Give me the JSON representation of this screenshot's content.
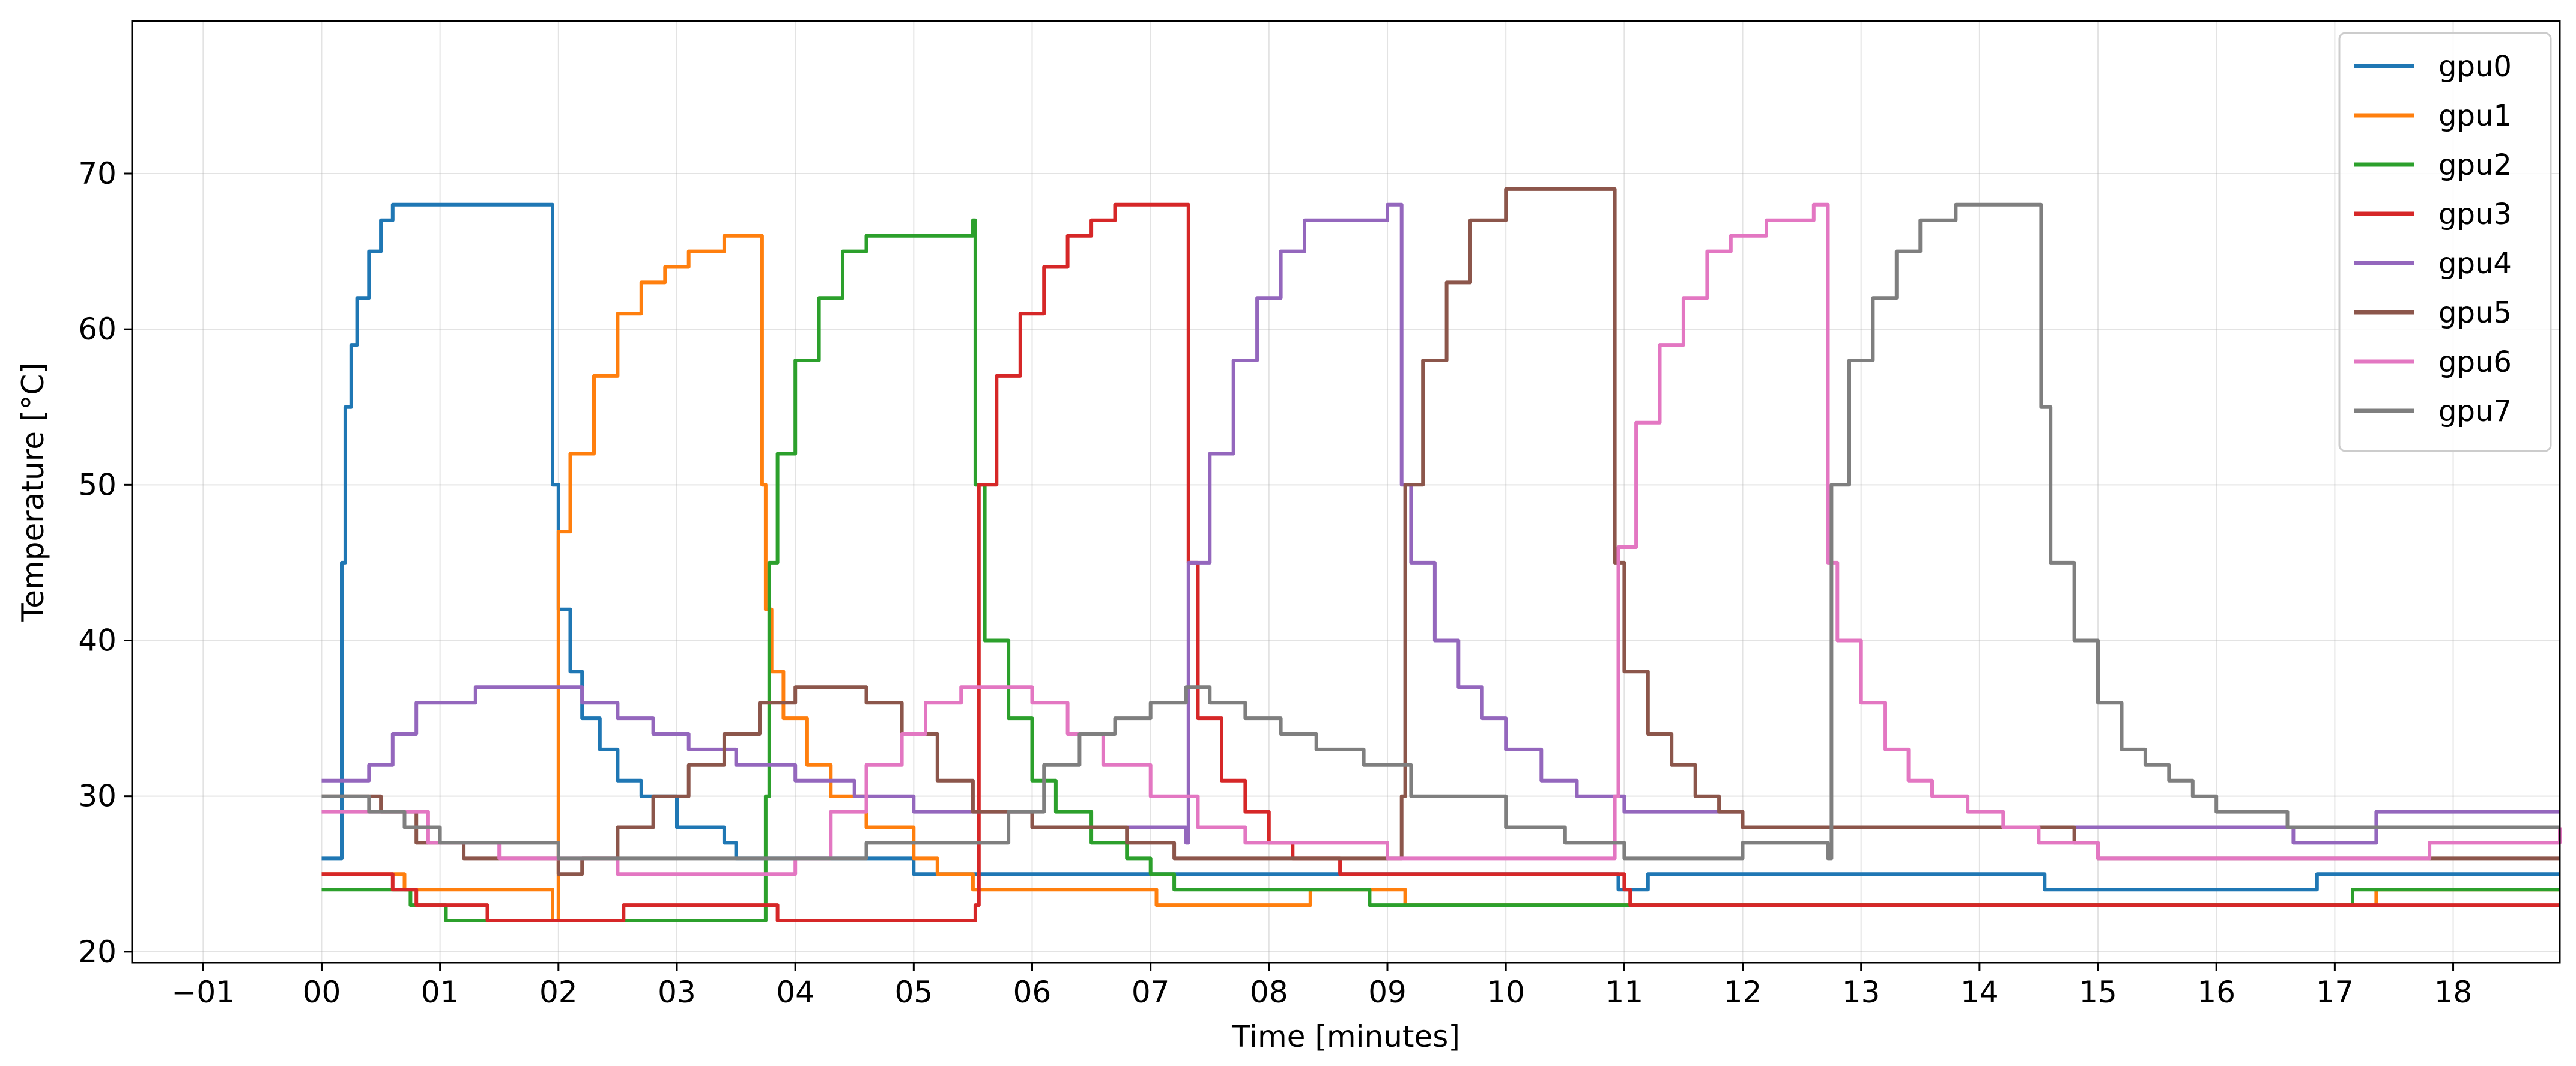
{
  "chart_data": {
    "type": "line",
    "title": "",
    "xlabel": "Time [minutes]",
    "ylabel": "Temperature [°C]",
    "xlim": [
      -1.6,
      18.9
    ],
    "ylim": [
      19.3,
      79.8
    ],
    "x_ticks": [
      -1,
      0,
      1,
      2,
      3,
      4,
      5,
      6,
      7,
      8,
      9,
      10,
      11,
      12,
      13,
      14,
      15,
      16,
      17,
      18
    ],
    "x_tick_labels": [
      "-01",
      "00",
      "01",
      "02",
      "03",
      "04",
      "05",
      "06",
      "07",
      "08",
      "09",
      "10",
      "11",
      "12",
      "13",
      "14",
      "15",
      "16",
      "17",
      "18"
    ],
    "y_ticks": [
      20,
      30,
      40,
      50,
      60,
      70
    ],
    "y_tick_labels": [
      "20",
      "30",
      "40",
      "50",
      "60",
      "70"
    ],
    "grid": true,
    "legend": "top-right",
    "series": [
      {
        "name": "gpu0",
        "color": "#1f77b4",
        "x": [
          0,
          0.15,
          0.17,
          0.2,
          0.25,
          0.3,
          0.4,
          0.5,
          0.6,
          0.7,
          0.75,
          1.9,
          1.95,
          2.0,
          2.1,
          2.2,
          2.35,
          2.5,
          2.7,
          3.0,
          3.4,
          3.5,
          4.8,
          5.0,
          6.0,
          10.9,
          10.95,
          11.1,
          11.2,
          14.5,
          14.55,
          16.8,
          16.85,
          18.9
        ],
        "y": [
          26,
          26,
          45,
          55,
          59,
          62,
          65,
          67,
          68,
          68,
          68,
          68,
          50,
          42,
          38,
          35,
          33,
          31,
          30,
          28,
          27,
          26,
          26,
          25,
          25,
          25,
          24,
          24,
          25,
          25,
          24,
          24,
          25,
          25
        ]
      },
      {
        "name": "gpu1",
        "color": "#ff7f0e",
        "x": [
          0,
          0.6,
          0.7,
          1.9,
          1.95,
          2.0,
          2.1,
          2.3,
          2.5,
          2.7,
          2.9,
          3.1,
          3.4,
          3.7,
          3.72,
          3.75,
          3.8,
          3.9,
          4.1,
          4.3,
          4.6,
          5.0,
          5.2,
          5.5,
          7.0,
          7.05,
          8.3,
          8.35,
          9.1,
          9.15,
          17.3,
          17.35,
          18.9
        ],
        "y": [
          25,
          25,
          24,
          24,
          22,
          47,
          52,
          57,
          61,
          63,
          64,
          65,
          66,
          66,
          50,
          42,
          38,
          35,
          32,
          30,
          28,
          26,
          25,
          24,
          24,
          23,
          23,
          24,
          24,
          23,
          23,
          24,
          24
        ]
      },
      {
        "name": "gpu2",
        "color": "#2ca02c",
        "x": [
          0,
          0.7,
          0.75,
          1.0,
          1.05,
          3.7,
          3.75,
          3.78,
          3.85,
          4.0,
          4.2,
          4.4,
          4.6,
          4.8,
          5.0,
          5.4,
          5.5,
          5.52,
          5.6,
          5.8,
          6.0,
          6.2,
          6.5,
          6.8,
          7.0,
          7.2,
          8.8,
          8.85,
          17.1,
          17.15,
          18.9
        ],
        "y": [
          24,
          24,
          23,
          23,
          22,
          22,
          30,
          45,
          52,
          58,
          62,
          65,
          66,
          66,
          66,
          66,
          67,
          50,
          40,
          35,
          31,
          29,
          27,
          26,
          25,
          24,
          24,
          23,
          23,
          24,
          24
        ]
      },
      {
        "name": "gpu3",
        "color": "#d62728",
        "x": [
          0,
          0.4,
          0.6,
          0.8,
          1.4,
          2.5,
          2.55,
          3.8,
          3.85,
          5.5,
          5.52,
          5.55,
          5.7,
          5.9,
          6.1,
          6.3,
          6.5,
          6.7,
          7.0,
          7.3,
          7.32,
          7.4,
          7.6,
          7.8,
          8.0,
          8.2,
          8.4,
          8.6,
          9.0,
          11.0,
          11.05,
          18.9
        ],
        "y": [
          25,
          25,
          24,
          23,
          22,
          22,
          23,
          23,
          22,
          22,
          23,
          50,
          57,
          61,
          64,
          66,
          67,
          68,
          68,
          68,
          45,
          35,
          31,
          29,
          27,
          26,
          26,
          25,
          25,
          24,
          23,
          23
        ]
      },
      {
        "name": "gpu4",
        "color": "#9467bd",
        "x": [
          0,
          0.1,
          0.4,
          0.6,
          0.8,
          1.0,
          1.3,
          1.6,
          2.0,
          2.2,
          2.5,
          2.8,
          3.1,
          3.5,
          4.0,
          4.5,
          5.0,
          6.0,
          7.2,
          7.3,
          7.32,
          7.5,
          7.7,
          7.9,
          8.1,
          8.3,
          8.6,
          9.0,
          9.1,
          9.12,
          9.2,
          9.4,
          9.6,
          9.8,
          10.0,
          10.3,
          10.6,
          11.0,
          11.5,
          12.0,
          14.0,
          16.6,
          16.65,
          17.3,
          17.35,
          18.9
        ],
        "y": [
          31,
          31,
          32,
          34,
          36,
          36,
          37,
          37,
          37,
          36,
          35,
          34,
          33,
          32,
          31,
          30,
          29,
          28,
          28,
          27,
          45,
          52,
          58,
          62,
          65,
          67,
          67,
          68,
          68,
          50,
          45,
          40,
          37,
          35,
          33,
          31,
          30,
          29,
          29,
          28,
          28,
          28,
          27,
          27,
          29,
          29
        ]
      },
      {
        "name": "gpu5",
        "color": "#8c564b",
        "x": [
          0,
          0.2,
          0.5,
          0.8,
          1.2,
          1.6,
          2.0,
          2.2,
          2.5,
          2.8,
          3.1,
          3.4,
          3.7,
          4.0,
          4.3,
          4.6,
          4.9,
          5.2,
          5.5,
          6.0,
          6.8,
          7.2,
          8.0,
          9.1,
          9.12,
          9.15,
          9.3,
          9.5,
          9.7,
          10.0,
          10.3,
          10.9,
          10.92,
          11.0,
          11.2,
          11.4,
          11.6,
          11.8,
          12.0,
          12.3,
          12.8,
          14.8,
          15.0,
          18.9
        ],
        "y": [
          30,
          30,
          29,
          27,
          26,
          26,
          25,
          26,
          28,
          30,
          32,
          34,
          36,
          37,
          37,
          36,
          34,
          31,
          29,
          28,
          27,
          26,
          26,
          26,
          30,
          50,
          58,
          63,
          67,
          69,
          69,
          69,
          45,
          38,
          34,
          32,
          30,
          29,
          28,
          28,
          28,
          27,
          26,
          26
        ]
      },
      {
        "name": "gpu6",
        "color": "#e377c2",
        "x": [
          0,
          0.5,
          0.9,
          1.5,
          2.5,
          3.2,
          3.7,
          4.0,
          4.3,
          4.6,
          4.9,
          5.1,
          5.4,
          5.7,
          6.0,
          6.3,
          6.6,
          7.0,
          7.4,
          7.8,
          8.4,
          9.0,
          10.0,
          10.9,
          10.92,
          10.95,
          11.1,
          11.3,
          11.5,
          11.7,
          11.9,
          12.2,
          12.6,
          12.7,
          12.72,
          12.8,
          13.0,
          13.2,
          13.4,
          13.6,
          13.9,
          14.2,
          14.5,
          15.0,
          16.5,
          17.8,
          18.9
        ],
        "y": [
          29,
          29,
          27,
          26,
          25,
          25,
          25,
          26,
          29,
          32,
          34,
          36,
          37,
          37,
          36,
          34,
          32,
          30,
          28,
          27,
          27,
          26,
          26,
          26,
          30,
          46,
          54,
          59,
          62,
          65,
          66,
          67,
          68,
          68,
          45,
          40,
          36,
          33,
          31,
          30,
          29,
          28,
          27,
          26,
          26,
          27,
          28
        ]
      },
      {
        "name": "gpu7",
        "color": "#7f7f7f",
        "x": [
          0,
          0.2,
          0.4,
          0.7,
          1.0,
          1.5,
          2.0,
          3.0,
          4.3,
          4.6,
          5.0,
          5.5,
          5.8,
          6.1,
          6.4,
          6.7,
          7.0,
          7.3,
          7.5,
          7.8,
          8.1,
          8.4,
          8.8,
          9.2,
          10.0,
          10.5,
          11.0,
          12.0,
          12.7,
          12.72,
          12.75,
          12.9,
          13.1,
          13.3,
          13.5,
          13.8,
          14.1,
          14.5,
          14.52,
          14.6,
          14.8,
          15.0,
          15.2,
          15.4,
          15.6,
          15.8,
          16.0,
          16.4,
          16.6,
          16.65,
          18.9
        ],
        "y": [
          30,
          30,
          29,
          28,
          27,
          27,
          26,
          26,
          26,
          27,
          27,
          27,
          29,
          32,
          34,
          35,
          36,
          37,
          36,
          35,
          34,
          33,
          32,
          30,
          28,
          27,
          26,
          27,
          27,
          26,
          50,
          58,
          62,
          65,
          67,
          68,
          68,
          68,
          55,
          45,
          40,
          36,
          33,
          32,
          31,
          30,
          29,
          29,
          28,
          28,
          28
        ]
      }
    ]
  }
}
